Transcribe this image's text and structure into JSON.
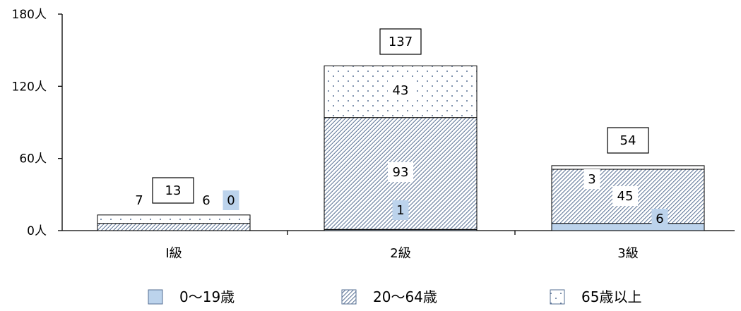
{
  "chart_data": {
    "type": "bar",
    "stacked": true,
    "categories": [
      "Ⅰ級",
      "2級",
      "3級"
    ],
    "ylim": [
      0,
      180
    ],
    "yticks": [
      0,
      60,
      120,
      180
    ],
    "ytick_labels": [
      "0人",
      "60人",
      "120人",
      "180人"
    ],
    "series": [
      {
        "name": "0～19歳",
        "values": [
          0,
          1,
          6
        ],
        "color": "#bcd3ec",
        "pattern": "solid"
      },
      {
        "name": "20～64歳",
        "values": [
          6,
          93,
          45
        ],
        "color": "#566f93",
        "pattern": "diagonal-hatch"
      },
      {
        "name": "65歳以上",
        "values": [
          7,
          43,
          3
        ],
        "color": "#566f93",
        "pattern": "dots"
      }
    ],
    "totals": [
      13,
      137,
      54
    ],
    "legend_position": "bottom",
    "grid": false,
    "annotations": [
      {
        "text": "7"
      },
      {
        "text": "13"
      },
      {
        "text": "6"
      },
      {
        "text": "0"
      },
      {
        "text": "43"
      },
      {
        "text": "93"
      },
      {
        "text": "1"
      },
      {
        "text": "137"
      },
      {
        "text": "3"
      },
      {
        "text": "45"
      },
      {
        "text": "6"
      },
      {
        "text": "54"
      }
    ]
  }
}
